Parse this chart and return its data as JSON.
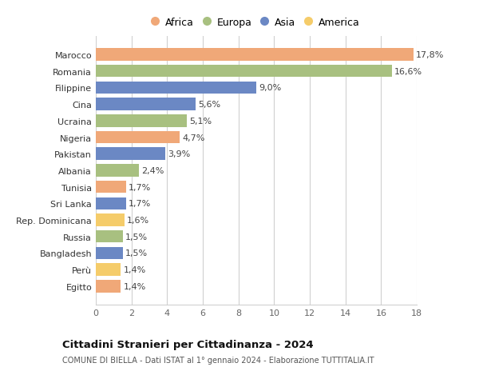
{
  "categories": [
    "Egitto",
    "Perù",
    "Bangladesh",
    "Russia",
    "Rep. Dominicana",
    "Sri Lanka",
    "Tunisia",
    "Albania",
    "Pakistan",
    "Nigeria",
    "Ucraina",
    "Cina",
    "Filippine",
    "Romania",
    "Marocco"
  ],
  "values": [
    1.4,
    1.4,
    1.5,
    1.5,
    1.6,
    1.7,
    1.7,
    2.4,
    3.9,
    4.7,
    5.1,
    5.6,
    9.0,
    16.6,
    17.8
  ],
  "colors": [
    "#f0a878",
    "#f5cc6a",
    "#6b88c4",
    "#a8c080",
    "#f5cc6a",
    "#6b88c4",
    "#f0a878",
    "#a8c080",
    "#6b88c4",
    "#f0a878",
    "#a8c080",
    "#6b88c4",
    "#6b88c4",
    "#a8c080",
    "#f0a878"
  ],
  "labels": [
    "1,4%",
    "1,4%",
    "1,5%",
    "1,5%",
    "1,6%",
    "1,7%",
    "1,7%",
    "2,4%",
    "3,9%",
    "4,7%",
    "5,1%",
    "5,6%",
    "9,0%",
    "16,6%",
    "17,8%"
  ],
  "legend": [
    {
      "label": "Africa",
      "color": "#f0a878"
    },
    {
      "label": "Europa",
      "color": "#a8c080"
    },
    {
      "label": "Asia",
      "color": "#6b88c4"
    },
    {
      "label": "America",
      "color": "#f5cc6a"
    }
  ],
  "xlim": [
    0,
    18
  ],
  "xticks": [
    0,
    2,
    4,
    6,
    8,
    10,
    12,
    14,
    16,
    18
  ],
  "title": "Cittadini Stranieri per Cittadinanza - 2024",
  "subtitle": "COMUNE DI BIELLA - Dati ISTAT al 1° gennaio 2024 - Elaborazione TUTTITALIA.IT",
  "background_color": "#ffffff",
  "grid_color": "#d0d0d0",
  "bar_height": 0.75
}
